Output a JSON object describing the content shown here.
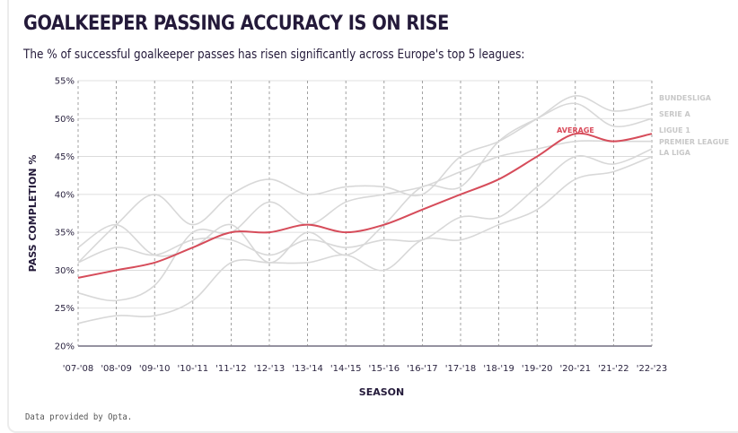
{
  "header": {
    "title": "GOALKEEPER PASSING ACCURACY IS ON RISE",
    "subtitle": "The % of successful goalkeeper passes has risen significantly across Europe's top 5 leagues:"
  },
  "footer": {
    "source": "Data provided by Opta."
  },
  "colors": {
    "average": "#d64c5a",
    "league": "#d8d8d8",
    "grid": "#8a8a8a",
    "axis": "#2b2440"
  },
  "chart_data": {
    "type": "line",
    "xlabel": "SEASON",
    "ylabel": "PASS COMPLETION %",
    "ylim": [
      20,
      55
    ],
    "yticks": [
      20,
      25,
      30,
      35,
      40,
      45,
      50,
      55
    ],
    "ytick_labels": [
      "20%",
      "25%",
      "30%",
      "35%",
      "40%",
      "45%",
      "50%",
      "55%"
    ],
    "categories": [
      "'07-'08",
      "'08-'09",
      "'09-'10",
      "'10-'11",
      "'11-'12",
      "'12-'13",
      "'13-'14",
      "'14-'15",
      "'15-'16",
      "'16-'17",
      "'17-'18",
      "'18-'19",
      "'19-'20",
      "'20-'21",
      "'21-'22",
      "'22-'23"
    ],
    "grid": {
      "vertical": "dashed",
      "horizontal": "solid"
    },
    "series": [
      {
        "name": "BUNDESLIGA",
        "values": [
          31,
          36,
          40,
          36,
          40,
          42,
          40,
          41,
          41,
          40,
          45,
          47,
          50,
          53,
          51,
          52
        ]
      },
      {
        "name": "SERIE A",
        "values": [
          33,
          36,
          32,
          33,
          36,
          31,
          35,
          32,
          36,
          41,
          41,
          47,
          50,
          52,
          49,
          50
        ]
      },
      {
        "name": "LIGUE 1",
        "values": [
          27,
          26,
          28,
          35,
          35,
          39,
          36,
          39,
          40,
          41,
          43,
          45,
          46,
          47,
          47,
          47
        ]
      },
      {
        "name": "PREMIER LEAGUE",
        "values": [
          31,
          33,
          32,
          34,
          34,
          32,
          34,
          33,
          34,
          34,
          37,
          37,
          41,
          45,
          44,
          46
        ]
      },
      {
        "name": "LA LIGA",
        "values": [
          23,
          24,
          24,
          26,
          31,
          31,
          31,
          32,
          30,
          34,
          34,
          36,
          38,
          42,
          43,
          45
        ]
      },
      {
        "name": "AVERAGE",
        "values": [
          29,
          30,
          31,
          33,
          35,
          35,
          36,
          35,
          36,
          38,
          40,
          42,
          45,
          48,
          47,
          48
        ]
      }
    ]
  }
}
